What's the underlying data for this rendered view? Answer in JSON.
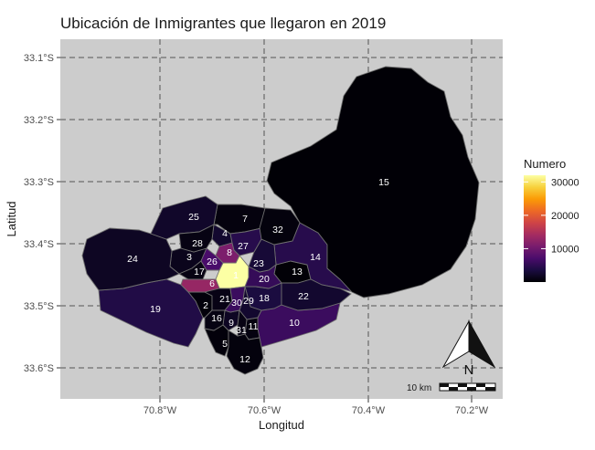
{
  "chart_data": {
    "type": "choropleth-map",
    "title": "Ubicación de Inmigrantes que llegaron en 2019",
    "xlabel": "Longitud",
    "ylabel": "Latitud",
    "x_ticks": [
      "70.8°W",
      "70.6°W",
      "70.4°W",
      "70.2°W"
    ],
    "y_ticks": [
      "33.1°S",
      "33.2°S",
      "33.3°S",
      "33.4°S",
      "33.5°S",
      "33.6°S"
    ],
    "grid": true,
    "legend": {
      "title": "Numero",
      "ticks": [
        "30000",
        "20000",
        "10000"
      ],
      "tick_values": [
        30000,
        20000,
        10000
      ],
      "range": [
        0,
        32000
      ],
      "placement": "right",
      "colors": [
        "#000004",
        "#1b0c41",
        "#4a0c6b",
        "#781c6d",
        "#a52c60",
        "#cf4446",
        "#ed6925",
        "#fb9b06",
        "#f7d13d",
        "#fcffa4"
      ]
    },
    "compass_label": "N",
    "scale_bar_label": "10 km",
    "regions": [
      {
        "label": "1",
        "value": 32000
      },
      {
        "label": "2",
        "value": 400
      },
      {
        "label": "3",
        "value": 1400
      },
      {
        "label": "4",
        "value": 2500
      },
      {
        "label": "5",
        "value": 400
      },
      {
        "label": "6",
        "value": 13000
      },
      {
        "label": "7",
        "value": 600
      },
      {
        "label": "8",
        "value": 11000
      },
      {
        "label": "9",
        "value": 1800
      },
      {
        "label": "10",
        "value": 6000
      },
      {
        "label": "11",
        "value": 700
      },
      {
        "label": "12",
        "value": 500
      },
      {
        "label": "13",
        "value": 200
      },
      {
        "label": "14",
        "value": 4500
      },
      {
        "label": "15",
        "value": 100
      },
      {
        "label": "16",
        "value": 800
      },
      {
        "label": "17",
        "value": 900
      },
      {
        "label": "18",
        "value": 3500
      },
      {
        "label": "19",
        "value": 4000
      },
      {
        "label": "20",
        "value": 5500
      },
      {
        "label": "21",
        "value": 1000
      },
      {
        "label": "22",
        "value": 2500
      },
      {
        "label": "23",
        "value": 3000
      },
      {
        "label": "24",
        "value": 1800
      },
      {
        "label": "25",
        "value": 2200
      },
      {
        "label": "26",
        "value": 7000
      },
      {
        "label": "27",
        "value": 4500
      },
      {
        "label": "28",
        "value": 900
      },
      {
        "label": "29",
        "value": 2500
      },
      {
        "label": "30",
        "value": 6000
      },
      {
        "label": "31",
        "value": 900
      },
      {
        "label": "32",
        "value": 500
      }
    ]
  }
}
